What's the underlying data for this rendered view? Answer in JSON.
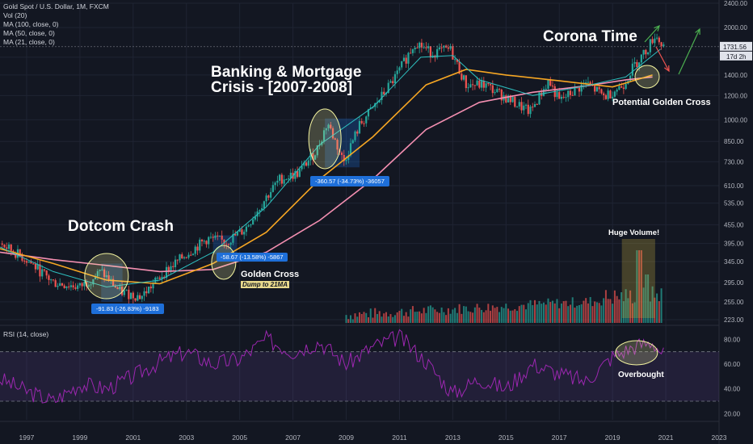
{
  "header": {
    "symbol_line": "Gold Spot / U.S. Dollar, 1M, FXCM",
    "vol_line": "Vol (20)",
    "ma100_line": "MA (100, close, 0)",
    "ma50_line": "MA (50, close, 0)",
    "ma21_line": "MA (21, close, 0)"
  },
  "price_axis": {
    "ticks": [
      "2400.00",
      "2000.00",
      "1600.00",
      "1400.00",
      "1200.00",
      "1000.00",
      "850.00",
      "730.00",
      "610.00",
      "535.00",
      "455.00",
      "395.00",
      "345.00",
      "295.00",
      "255.00",
      "223.00"
    ],
    "last_price": "1731.56",
    "countdown": "17d 2h"
  },
  "rsi_axis": {
    "ticks": [
      "80.00",
      "60.00",
      "40.00",
      "20.00"
    ]
  },
  "time_axis": {
    "ticks": [
      "1997",
      "1999",
      "2001",
      "2003",
      "2005",
      "2007",
      "2009",
      "2011",
      "2013",
      "2015",
      "2017",
      "2019",
      "2021",
      "2023"
    ]
  },
  "annotations": {
    "dotcom": "Dotcom Crash",
    "banking_line1": "Banking & Mortgage",
    "banking_line2": "Crisis - [2007-2008]",
    "corona": "Corona Time",
    "golden_cross": "Golden Cross",
    "dump": "Dump to 21MA",
    "potential": "Potential Golden Cross",
    "huge_volume": "Huge Volume!",
    "overbought": "Overbought",
    "box1": "-91.83 (-26.83%) -9183",
    "box2": "-58.67 (-13.58%) -5867",
    "box3": "-360.57 (-34.73%) -36057"
  },
  "rsi_title": "RSI (14, close)",
  "colors": {
    "background": "#131722",
    "up": "#26a69a",
    "down": "#ef5350",
    "ma21": "#2ebfbf",
    "ma50": "#f6a623",
    "ma100": "#f48fb1",
    "rsi": "#9c27b0",
    "highlight_circle": "#f5f5a0",
    "measure_box": "#1e6fd9"
  },
  "chart_data": {
    "type": "candlestick",
    "title": "Gold Spot / U.S. Dollar, 1M, FXCM",
    "x_range": [
      1996,
      2023
    ],
    "y_scale": "log",
    "y_range": [
      215,
      2400
    ],
    "price_path": [
      {
        "x": 1996.0,
        "y": 395
      },
      {
        "x": 1997.0,
        "y": 350
      },
      {
        "x": 1998.0,
        "y": 295
      },
      {
        "x": 1999.0,
        "y": 285
      },
      {
        "x": 1999.8,
        "y": 320
      },
      {
        "x": 2000.5,
        "y": 275
      },
      {
        "x": 2001.3,
        "y": 265
      },
      {
        "x": 2002.2,
        "y": 320
      },
      {
        "x": 2003.0,
        "y": 365
      },
      {
        "x": 2003.8,
        "y": 410
      },
      {
        "x": 2004.5,
        "y": 400
      },
      {
        "x": 2005.2,
        "y": 440
      },
      {
        "x": 2006.0,
        "y": 560
      },
      {
        "x": 2006.5,
        "y": 640
      },
      {
        "x": 2007.2,
        "y": 670
      },
      {
        "x": 2007.9,
        "y": 800
      },
      {
        "x": 2008.3,
        "y": 980
      },
      {
        "x": 2008.9,
        "y": 730
      },
      {
        "x": 2009.5,
        "y": 960
      },
      {
        "x": 2010.2,
        "y": 1150
      },
      {
        "x": 2010.9,
        "y": 1400
      },
      {
        "x": 2011.6,
        "y": 1800
      },
      {
        "x": 2012.2,
        "y": 1650
      },
      {
        "x": 2012.9,
        "y": 1700
      },
      {
        "x": 2013.5,
        "y": 1300
      },
      {
        "x": 2014.2,
        "y": 1300
      },
      {
        "x": 2015.0,
        "y": 1180
      },
      {
        "x": 2015.9,
        "y": 1060
      },
      {
        "x": 2016.6,
        "y": 1340
      },
      {
        "x": 2017.0,
        "y": 1150
      },
      {
        "x": 2018.0,
        "y": 1320
      },
      {
        "x": 2018.7,
        "y": 1190
      },
      {
        "x": 2019.4,
        "y": 1300
      },
      {
        "x": 2019.8,
        "y": 1500
      },
      {
        "x": 2020.3,
        "y": 1700
      },
      {
        "x": 2020.6,
        "y": 1900
      },
      {
        "x": 2020.9,
        "y": 1731
      }
    ],
    "ma21": [
      [
        1996,
        385
      ],
      [
        1998,
        320
      ],
      [
        2000,
        285
      ],
      [
        2002,
        300
      ],
      [
        2004,
        370
      ],
      [
        2006,
        520
      ],
      [
        2008,
        830
      ],
      [
        2010,
        1100
      ],
      [
        2011.8,
        1600
      ],
      [
        2013,
        1620
      ],
      [
        2014,
        1350
      ],
      [
        2016,
        1200
      ],
      [
        2018,
        1290
      ],
      [
        2019.5,
        1380
      ],
      [
        2020.8,
        1700
      ]
    ],
    "ma50": [
      [
        1996,
        380
      ],
      [
        1998,
        340
      ],
      [
        2000,
        300
      ],
      [
        2002,
        292
      ],
      [
        2004,
        340
      ],
      [
        2006,
        430
      ],
      [
        2008,
        640
      ],
      [
        2010,
        880
      ],
      [
        2012,
        1300
      ],
      [
        2013.5,
        1460
      ],
      [
        2015,
        1400
      ],
      [
        2017,
        1340
      ],
      [
        2019,
        1280
      ],
      [
        2020.5,
        1400
      ]
    ],
    "ma100": [
      [
        1996,
        370
      ],
      [
        1998,
        350
      ],
      [
        2000,
        335
      ],
      [
        2002,
        320
      ],
      [
        2004,
        325
      ],
      [
        2006,
        370
      ],
      [
        2008,
        470
      ],
      [
        2010,
        640
      ],
      [
        2012,
        930
      ],
      [
        2014,
        1140
      ],
      [
        2016,
        1230
      ],
      [
        2018,
        1290
      ],
      [
        2019.5,
        1350
      ],
      [
        2020.5,
        1380
      ]
    ],
    "rsi": [
      [
        1996,
        48
      ],
      [
        1997,
        38
      ],
      [
        1998,
        30
      ],
      [
        1999,
        44
      ],
      [
        2000,
        40
      ],
      [
        2001,
        50
      ],
      [
        2002,
        62
      ],
      [
        2003,
        70
      ],
      [
        2004,
        60
      ],
      [
        2005,
        64
      ],
      [
        2006,
        80
      ],
      [
        2007,
        70
      ],
      [
        2008,
        78
      ],
      [
        2009,
        60
      ],
      [
        2010,
        74
      ],
      [
        2011,
        82
      ],
      [
        2012,
        62
      ],
      [
        2013,
        36
      ],
      [
        2014,
        48
      ],
      [
        2015,
        40
      ],
      [
        2016,
        60
      ],
      [
        2017,
        52
      ],
      [
        2018,
        46
      ],
      [
        2019,
        66
      ],
      [
        2019.8,
        74
      ],
      [
        2020.5,
        78
      ],
      [
        2020.9,
        68
      ]
    ],
    "rsi_range": [
      15,
      90
    ],
    "rsi_levels": [
      70,
      30
    ],
    "measure_boxes": [
      {
        "label": "-91.83 (-26.83%) -9183",
        "x0": 1999.8,
        "x1": 2000.6,
        "y_top": 340,
        "y_bot": 255
      },
      {
        "label": "-58.67 (-13.58%) -5867",
        "x0": 2004.0,
        "x1": 2004.9,
        "y_top": 420,
        "y_bot": 365
      },
      {
        "label": "-360.57 (-34.73%) -36057",
        "x0": 2008.2,
        "x1": 2009.5,
        "y_top": 1010,
        "y_bot": 700
      }
    ]
  }
}
